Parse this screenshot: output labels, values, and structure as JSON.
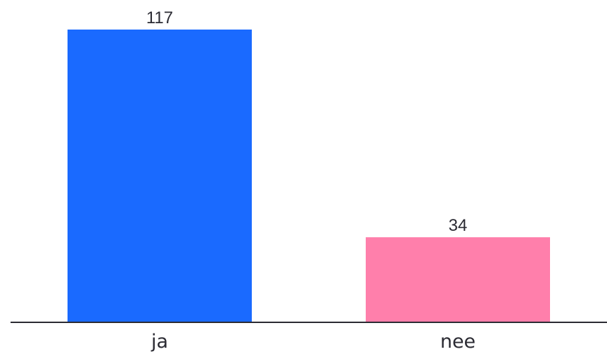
{
  "chart_data": {
    "type": "bar",
    "categories": [
      "ja",
      "nee"
    ],
    "values": [
      117,
      34
    ],
    "colors": [
      "#1a6aff",
      "#ff7fab"
    ],
    "axis_color": "#2b2b33",
    "title": "",
    "xlabel": "",
    "ylabel": "",
    "ylim": [
      0,
      117
    ],
    "grid": false,
    "data_labels": true
  }
}
